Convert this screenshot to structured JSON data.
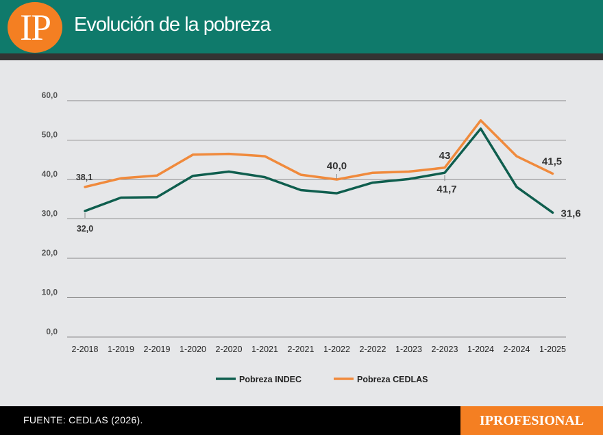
{
  "header": {
    "logo_text": "IP",
    "title": "Evolución de la pobreza"
  },
  "footer": {
    "source": "FUENTE: CEDLAS (2026).",
    "brand": "IPROFESIONAL"
  },
  "colors": {
    "indec": "#0f5e4e",
    "cedlas": "#f08a3c",
    "header": "#0f7a6b",
    "accent": "#f47f22"
  },
  "chart_data": {
    "type": "line",
    "title": "Evolución de la pobreza",
    "xlabel": "",
    "ylabel": "",
    "ylim": [
      0,
      60
    ],
    "grid": true,
    "legend": "bottom-center",
    "yticks": [
      "0,0",
      "10,0",
      "20,0",
      "30,0",
      "40,0",
      "50,0",
      "60,0"
    ],
    "categories": [
      "2-2018",
      "1-2019",
      "2-2019",
      "1-2020",
      "2-2020",
      "1-2021",
      "2-2021",
      "1-2022",
      "2-2022",
      "1-2023",
      "2-2023",
      "1-2024",
      "2-2024",
      "1-2025"
    ],
    "series": [
      {
        "name": "Pobreza INDEC",
        "key": "indec",
        "values": [
          32.0,
          35.4,
          35.5,
          40.9,
          42.0,
          40.6,
          37.3,
          36.5,
          39.2,
          40.1,
          41.7,
          52.9,
          38.1,
          31.6
        ]
      },
      {
        "name": "Pobreza CEDLAS",
        "key": "cedlas",
        "values": [
          38.1,
          40.3,
          41.0,
          46.3,
          46.5,
          45.9,
          41.2,
          40.0,
          41.7,
          42.0,
          43.0,
          55.0,
          45.9,
          41.5
        ]
      }
    ],
    "annotations": [
      {
        "series": "indec",
        "index": 0,
        "text": "32,0"
      },
      {
        "series": "cedlas",
        "index": 0,
        "text": "38,1"
      },
      {
        "series": "cedlas",
        "index": 7,
        "text": "40,0"
      },
      {
        "series": "cedlas",
        "index": 10,
        "text": "43"
      },
      {
        "series": "indec",
        "index": 10,
        "text": "41,7"
      },
      {
        "series": "cedlas",
        "index": 13,
        "text": "41,5"
      },
      {
        "series": "indec",
        "index": 13,
        "text": "31,6"
      }
    ]
  }
}
